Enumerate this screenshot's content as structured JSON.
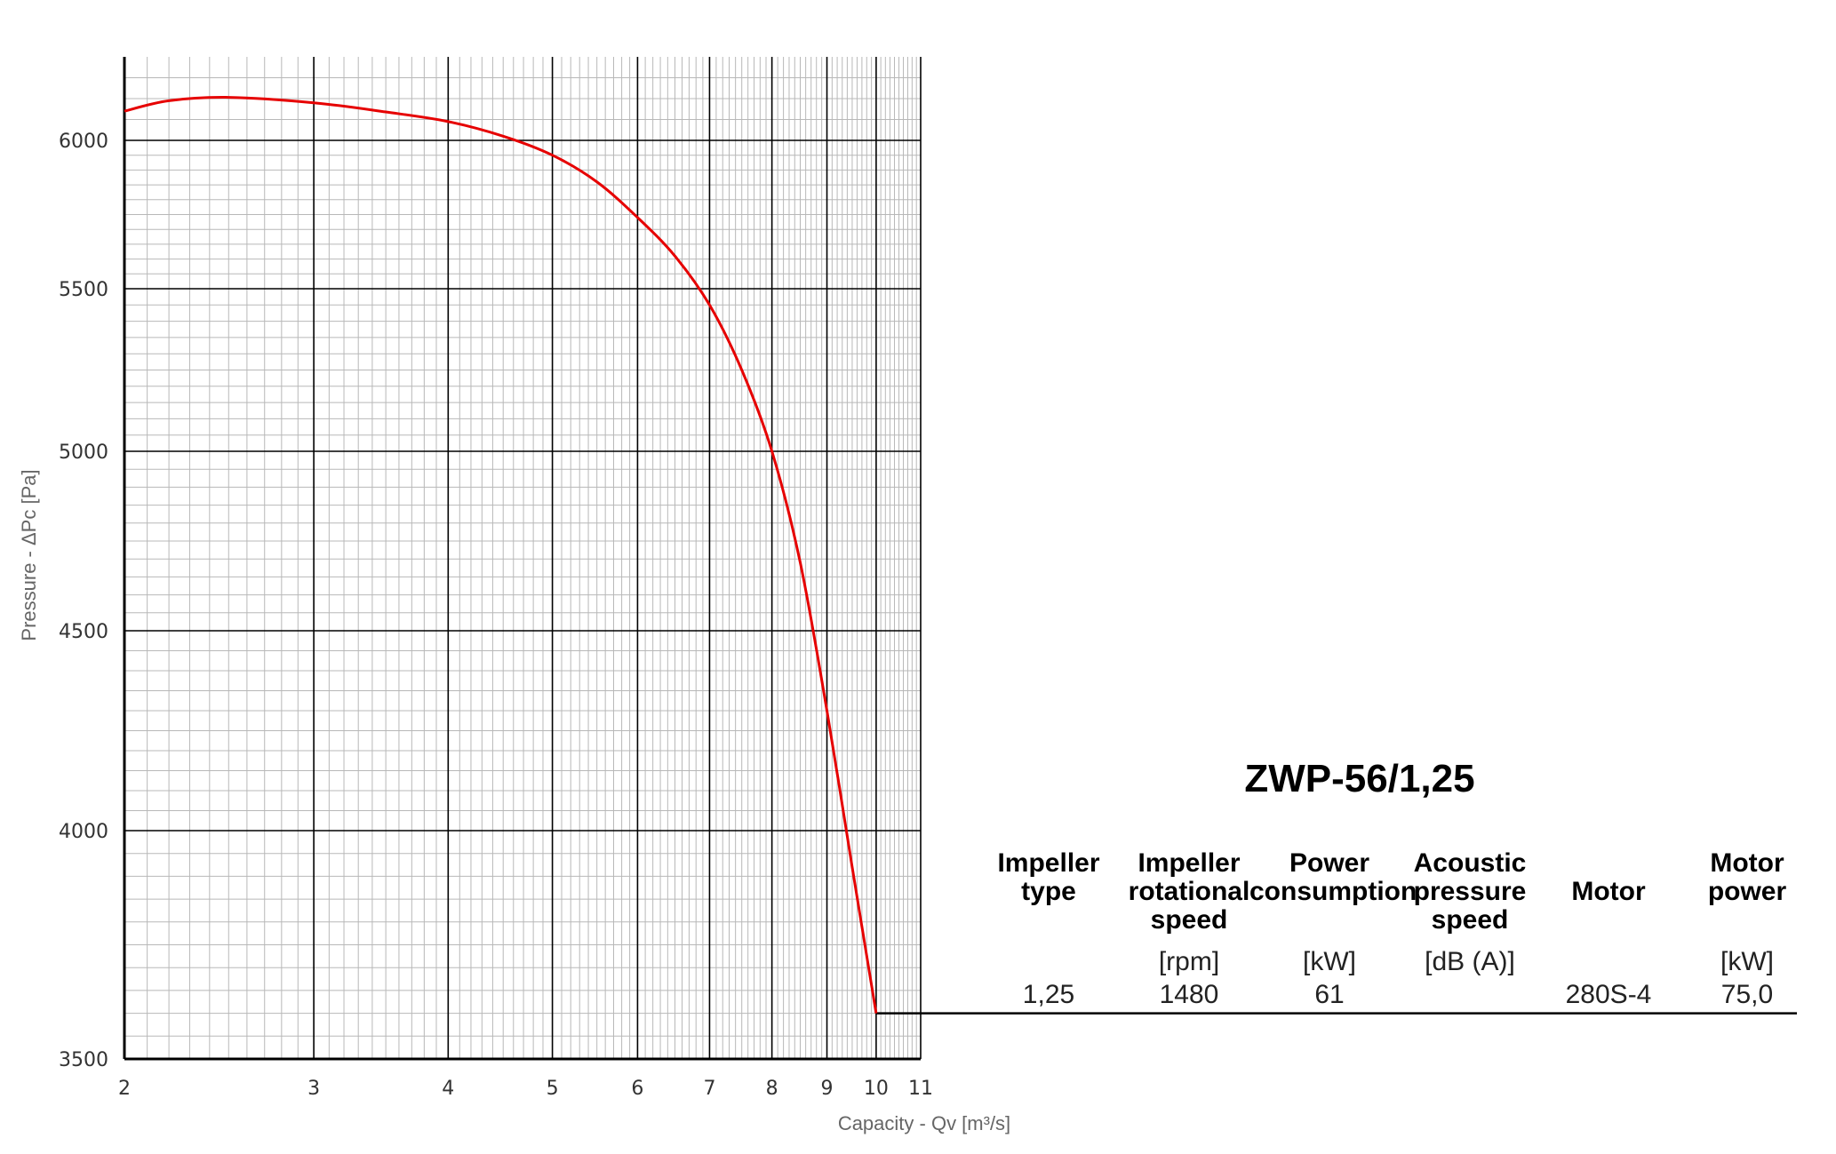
{
  "chart_data": {
    "type": "line",
    "xlabel": "Capacity - Qv [m³/s]",
    "ylabel": "Pressure - ΔPc [Pa]",
    "x_scale": "log",
    "y_scale": "nonlinear",
    "xlim": [
      2,
      11
    ],
    "ylim": [
      3500,
      6200
    ],
    "x_ticks": [
      "2",
      "3",
      "4",
      "5",
      "6",
      "7",
      "8",
      "9",
      "10",
      "11"
    ],
    "y_ticks": [
      "3500",
      "4000",
      "4500",
      "5000",
      "5500",
      "6000"
    ],
    "grid": true,
    "series": [
      {
        "color": "#e60000",
        "x": [
          2.0,
          2.2,
          2.5,
          3.0,
          3.5,
          4.0,
          4.5,
          5.0,
          5.5,
          6.0,
          6.5,
          7.0,
          7.5,
          8.0,
          8.5,
          9.0,
          9.5,
          10.0
        ],
        "y": [
          6070,
          6095,
          6103,
          6090,
          6068,
          6045,
          6010,
          5950,
          5860,
          5740,
          5610,
          5450,
          5250,
          5000,
          4690,
          4300,
          3920,
          3600
        ]
      }
    ]
  },
  "spec": {
    "title": "ZWP-56/1,25",
    "columns": [
      {
        "header": [
          "Impeller",
          "type"
        ],
        "unit": "",
        "value": "1,25"
      },
      {
        "header": [
          "Impeller",
          "rotational",
          "speed"
        ],
        "unit": "[rpm]",
        "value": "1480"
      },
      {
        "header": [
          "Power",
          "consumption"
        ],
        "unit": "[kW]",
        "value": "61"
      },
      {
        "header": [
          "Acoustic",
          "pressure",
          "speed"
        ],
        "unit": "[dB (A)]",
        "value": ""
      },
      {
        "header": [
          "Motor"
        ],
        "unit": "",
        "value": "280S-4"
      },
      {
        "header": [
          "Motor",
          "power"
        ],
        "unit": "[kW]",
        "value": "75,0"
      }
    ]
  },
  "colors": {
    "curve": "#e60000",
    "major_grid": "#000000",
    "minor_grid": "#b8b8b8"
  }
}
